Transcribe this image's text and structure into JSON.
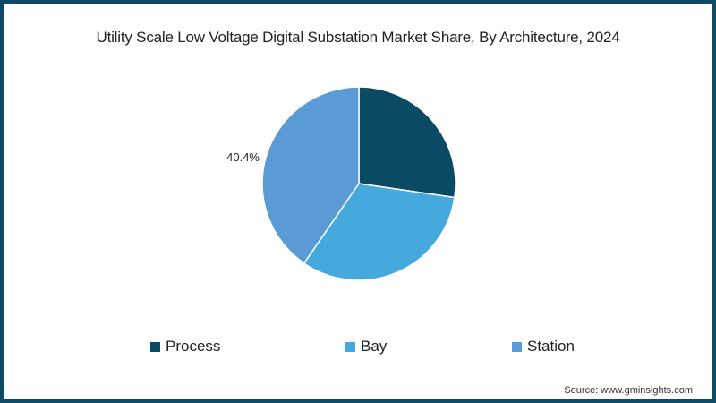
{
  "chart_data": {
    "type": "pie",
    "title": "Utility Scale Low Voltage Digital Substation Market Share, By Architecture, 2024",
    "categories": [
      "Process",
      "Bay",
      "Station"
    ],
    "values": [
      27.3,
      32.3,
      40.4
    ],
    "labeled_values": {
      "Station": "40.4%"
    },
    "colors": [
      "#0b4a63",
      "#45a9dd",
      "#5b9bd5"
    ],
    "legend_position": "bottom",
    "source": "Source: www.gminsights.com"
  },
  "title": "Utility Scale Low Voltage Digital Substation Market Share, By Architecture, 2024",
  "label_station": "40.4%",
  "legend": [
    {
      "label": "Process",
      "color": "#0b4a63"
    },
    {
      "label": "Bay",
      "color": "#45a9dd"
    },
    {
      "label": "Station",
      "color": "#5b9bd5"
    }
  ],
  "source": "Source: www.gminsights.com"
}
